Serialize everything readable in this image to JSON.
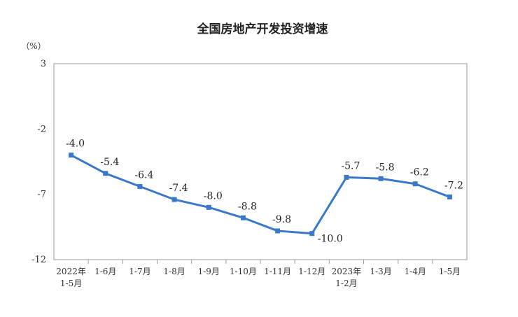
{
  "chart_data": {
    "type": "line",
    "title": "全国房地产开发投资增速",
    "unit_label": "（%）",
    "ylim": [
      -12,
      3
    ],
    "yticks": [
      "3",
      "-2",
      "-7",
      "-12"
    ],
    "ytick_values": [
      3,
      -2,
      -7,
      -12
    ],
    "categories": [
      [
        "2022年",
        "1-5月"
      ],
      [
        "1-6月"
      ],
      [
        "1-7月"
      ],
      [
        "1-8月"
      ],
      [
        "1-9月"
      ],
      [
        "1-10月"
      ],
      [
        "1-11月"
      ],
      [
        "1-12月"
      ],
      [
        "2023年",
        "1-2月"
      ],
      [
        "1-3月"
      ],
      [
        "1-4月"
      ],
      [
        "1-5月"
      ]
    ],
    "series": [
      {
        "values": [
          -4.0,
          -5.4,
          -6.4,
          -7.4,
          -8.0,
          -8.8,
          -9.8,
          -10.0,
          -5.7,
          -5.8,
          -6.2,
          -7.2
        ],
        "labels": [
          "-4.0",
          "-5.4",
          "-6.4",
          "-7.4",
          "-8.0",
          "-8.8",
          "-9.8",
          "-10.0",
          "-5.7",
          "-5.8",
          "-6.2",
          "-7.2"
        ],
        "color": "#3a78c9"
      }
    ],
    "grid": false,
    "legend": "none"
  }
}
